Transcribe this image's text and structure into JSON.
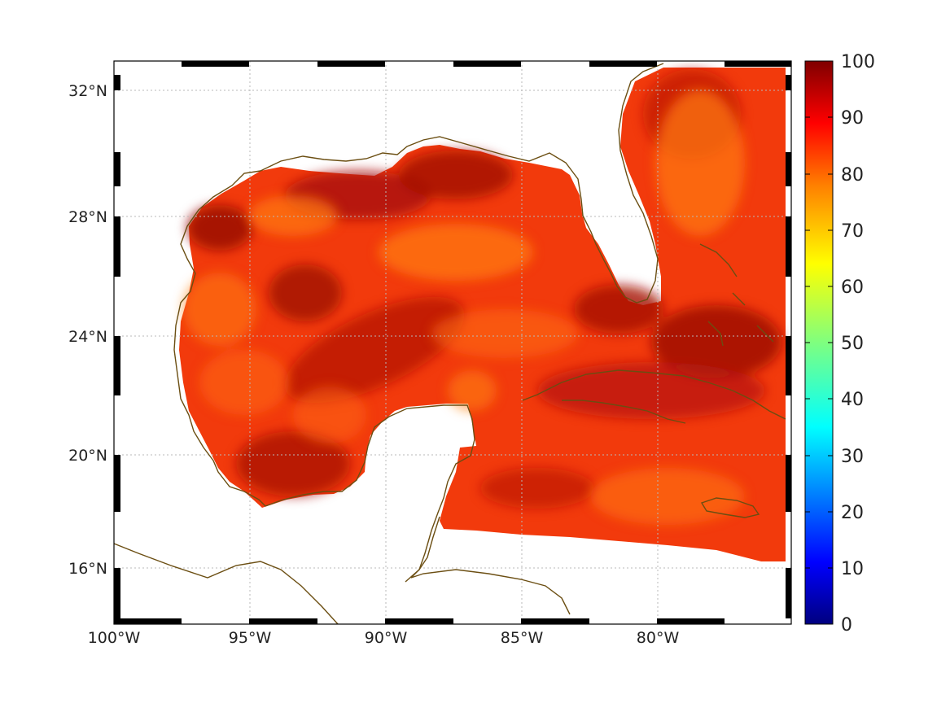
{
  "map": {
    "lon_ticks": [
      "100°W",
      "95°W",
      "90°W",
      "85°W",
      "80°W"
    ],
    "lat_ticks": [
      "32°N",
      "28°N",
      "24°N",
      "20°N",
      "16°N"
    ],
    "extent": {
      "lon": [
        -100,
        -75
      ],
      "lat": [
        14.3,
        33
      ]
    },
    "colormap": "jet",
    "coastline_color": "#6b4e12",
    "grid": "dotted gray",
    "frame": "alternating black/white ticks"
  },
  "colorbar": {
    "range": [
      0,
      100
    ],
    "labels": [
      "100",
      "90",
      "80",
      "70",
      "60",
      "50",
      "40",
      "30",
      "20",
      "10",
      "0"
    ],
    "colors": [
      "#00007f",
      "#0000ff",
      "#007fff",
      "#00ffff",
      "#7fff7f",
      "#ffff00",
      "#ff7f00",
      "#ff0000",
      "#7f0000"
    ]
  }
}
